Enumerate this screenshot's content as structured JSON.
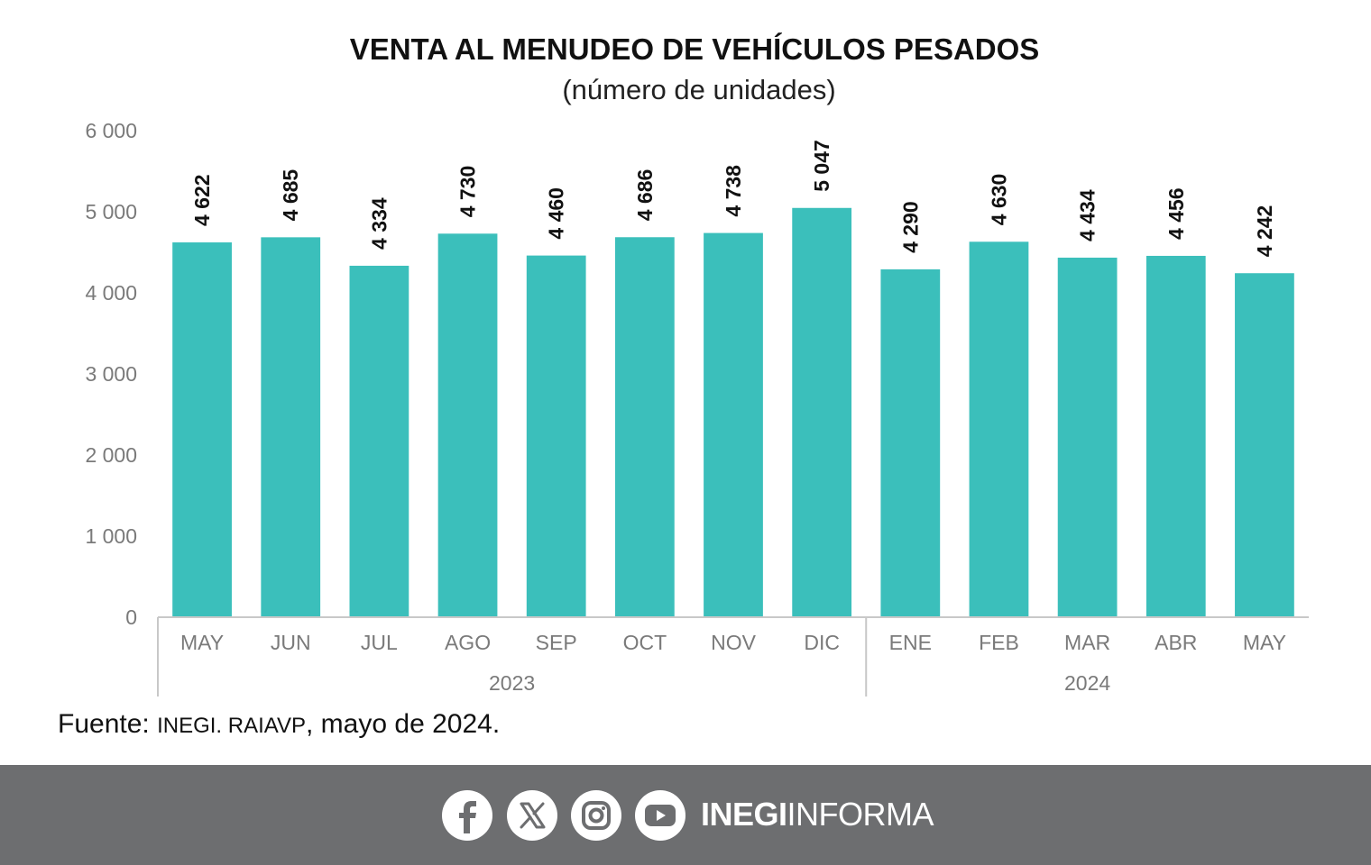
{
  "chart_data": {
    "type": "bar",
    "title": "VENTA AL MENUDEO DE VEHÍCULOS PESADOS",
    "subtitle": "(número de unidades)",
    "categories": [
      "MAY",
      "JUN",
      "JUL",
      "AGO",
      "SEP",
      "OCT",
      "NOV",
      "DIC",
      "ENE",
      "FEB",
      "MAR",
      "ABR",
      "MAY"
    ],
    "values": [
      4622,
      4685,
      4334,
      4730,
      4460,
      4686,
      4738,
      5047,
      4290,
      4630,
      4434,
      4456,
      4242
    ],
    "value_labels": [
      "4 622",
      "4 685",
      "4 334",
      "4 730",
      "4 460",
      "4 686",
      "4 738",
      "5 047",
      "4 290",
      "4 630",
      "4 434",
      "4 456",
      "4 242"
    ],
    "groups": [
      {
        "label": "2023",
        "count": 8
      },
      {
        "label": "2024",
        "count": 5
      }
    ],
    "yticks": [
      0,
      1000,
      2000,
      3000,
      4000,
      5000,
      6000
    ],
    "ytick_labels": [
      "0",
      "1 000",
      "2 000",
      "3 000",
      "4 000",
      "5 000",
      "6 000"
    ],
    "ylim": [
      0,
      6000
    ],
    "bar_color": "#3bbfbb",
    "grid": false,
    "legend": "none"
  },
  "source": {
    "prefix": "Fuente: ",
    "org": "INEGI. RAIAVP",
    "suffix": ", mayo de 2024."
  },
  "footer": {
    "brand_bold": "INEGI",
    "brand_regular": "INFORMA",
    "icons": [
      "facebook-icon",
      "x-icon",
      "instagram-icon",
      "youtube-icon"
    ],
    "background": "#6d6e70"
  }
}
